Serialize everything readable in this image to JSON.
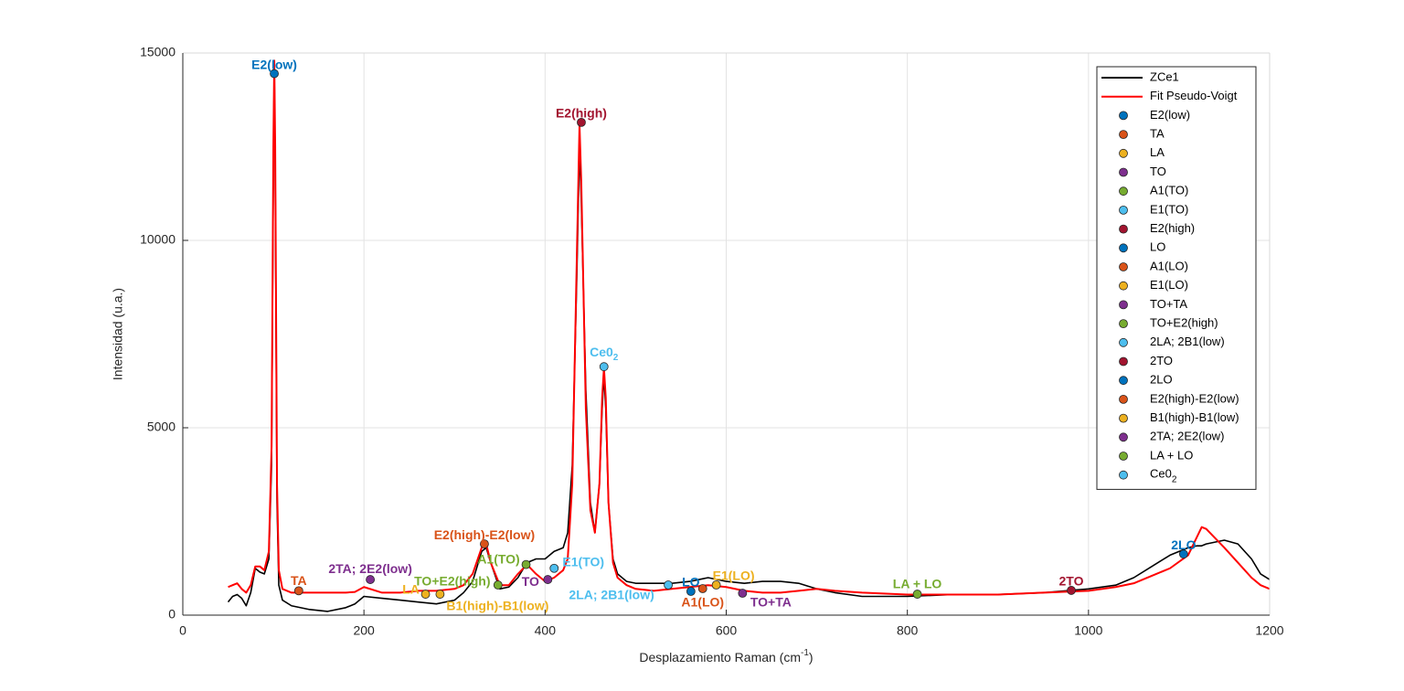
{
  "chart_data": {
    "type": "line",
    "xlabel": [
      "Desplazamiento Raman (cm",
      "-1",
      ")"
    ],
    "ylabel": "Intensidad (u.a.)",
    "xlim": [
      0,
      1200
    ],
    "ylim": [
      0,
      15000
    ],
    "xticks": [
      0,
      200,
      400,
      600,
      800,
      1000,
      1200
    ],
    "yticks": [
      0,
      5000,
      10000,
      15000
    ],
    "grid": true,
    "legend": "northeast",
    "x": [
      50,
      55,
      60,
      65,
      70,
      75,
      80,
      85,
      90,
      95,
      98,
      100,
      101,
      102,
      104,
      106,
      110,
      120,
      140,
      160,
      180,
      190,
      200,
      220,
      240,
      260,
      280,
      300,
      310,
      320,
      330,
      335,
      340,
      350,
      360,
      370,
      380,
      390,
      400,
      410,
      420,
      425,
      430,
      435,
      438,
      440,
      445,
      450,
      455,
      460,
      463,
      465,
      467,
      470,
      475,
      480,
      490,
      500,
      520,
      540,
      560,
      580,
      600,
      620,
      640,
      660,
      680,
      700,
      720,
      750,
      800,
      850,
      900,
      950,
      1000,
      1030,
      1050,
      1070,
      1090,
      1110,
      1120,
      1125,
      1130,
      1150,
      1165,
      1180,
      1190,
      1200
    ],
    "series": [
      {
        "type": "line",
        "name": "ZCe1",
        "color": "#000000",
        "values": [
          350,
          500,
          550,
          450,
          250,
          600,
          1250,
          1150,
          1100,
          1500,
          4000,
          12000,
          14500,
          12000,
          3000,
          800,
          400,
          250,
          150,
          100,
          200,
          300,
          500,
          450,
          400,
          350,
          300,
          400,
          600,
          900,
          1700,
          1800,
          1400,
          700,
          750,
          1000,
          1400,
          1500,
          1500,
          1700,
          1800,
          2200,
          4000,
          9000,
          12500,
          11000,
          6000,
          3000,
          2200,
          3500,
          5500,
          6400,
          5500,
          3000,
          1500,
          1100,
          900,
          850,
          850,
          850,
          900,
          1000,
          900,
          850,
          900,
          900,
          850,
          700,
          600,
          500,
          500,
          550,
          550,
          600,
          700,
          800,
          1000,
          1300,
          1600,
          1800,
          1850,
          1850,
          1900,
          2000,
          1900,
          1500,
          1100,
          950
        ]
      },
      {
        "type": "line",
        "name": "Fit Pseudo-Voigt",
        "color": "#ff0000",
        "values": [
          750,
          800,
          850,
          700,
          600,
          800,
          1300,
          1300,
          1200,
          1700,
          4500,
          12500,
          14800,
          12500,
          3500,
          1200,
          700,
          600,
          600,
          600,
          600,
          620,
          750,
          600,
          600,
          650,
          650,
          700,
          800,
          1100,
          1800,
          1900,
          1400,
          800,
          800,
          1100,
          1350,
          1100,
          900,
          1000,
          1200,
          1500,
          3500,
          9500,
          13100,
          11500,
          5500,
          2800,
          2200,
          3500,
          5800,
          6600,
          5800,
          3000,
          1400,
          1000,
          800,
          700,
          650,
          700,
          750,
          800,
          750,
          650,
          600,
          600,
          650,
          700,
          650,
          600,
          550,
          550,
          550,
          600,
          650,
          750,
          850,
          1050,
          1250,
          1600,
          2100,
          2350,
          2300,
          1800,
          1400,
          1000,
          800,
          700
        ]
      },
      {
        "type": "scatter",
        "name": "E2(low)",
        "color": "#0072BD",
        "x": [
          101
        ],
        "values": [
          14450
        ]
      },
      {
        "type": "scatter",
        "name": "TA",
        "color": "#D95319",
        "x": [
          128
        ],
        "values": [
          650
        ]
      },
      {
        "type": "scatter",
        "name": "LA",
        "color": "#EDB120",
        "x": [
          268
        ],
        "values": [
          560
        ]
      },
      {
        "type": "scatter",
        "name": "TO",
        "color": "#7E2F8E",
        "x": [
          403
        ],
        "values": [
          950
        ]
      },
      {
        "type": "scatter",
        "name": "A1(TO)",
        "color": "#77AC30",
        "x": [
          379
        ],
        "values": [
          1350
        ]
      },
      {
        "type": "scatter",
        "name": "E1(TO)",
        "color": "#4DBEEE",
        "x": [
          410
        ],
        "values": [
          1250
        ]
      },
      {
        "type": "scatter",
        "name": "E2(high)",
        "color": "#A2142F",
        "x": [
          440
        ],
        "values": [
          13150
        ]
      },
      {
        "type": "scatter",
        "name": "LO",
        "color": "#0072BD",
        "x": [
          561
        ],
        "values": [
          634
        ]
      },
      {
        "type": "scatter",
        "name": "A1(LO)",
        "color": "#D95319",
        "x": [
          574
        ],
        "values": [
          707
        ]
      },
      {
        "type": "scatter",
        "name": "E1(LO)",
        "color": "#EDB120",
        "x": [
          589
        ],
        "values": [
          805
        ]
      },
      {
        "type": "scatter",
        "name": "TO+TA",
        "color": "#7E2F8E",
        "x": [
          618
        ],
        "values": [
          585
        ]
      },
      {
        "type": "scatter",
        "name": "TO+E2(high)",
        "color": "#77AC30",
        "x": [
          348
        ],
        "values": [
          805
        ]
      },
      {
        "type": "scatter",
        "name": "2LA; 2B1(low)",
        "color": "#4DBEEE",
        "x": [
          536
        ],
        "values": [
          805
        ]
      },
      {
        "type": "scatter",
        "name": "2TO",
        "color": "#A2142F",
        "x": [
          981
        ],
        "values": [
          660
        ]
      },
      {
        "type": "scatter",
        "name": "2LO",
        "color": "#0072BD",
        "x": [
          1105
        ],
        "values": [
          1630
        ]
      },
      {
        "type": "scatter",
        "name": "E2(high)-E2(low)",
        "color": "#D95319",
        "x": [
          333
        ],
        "values": [
          1900
        ]
      },
      {
        "type": "scatter",
        "name": "B1(high)-B1(low)",
        "color": "#EDB120",
        "x": [
          284
        ],
        "values": [
          560
        ]
      },
      {
        "type": "scatter",
        "name": "2TA; 2E2(low)",
        "color": "#7E2F8E",
        "x": [
          207
        ],
        "values": [
          950
        ]
      },
      {
        "type": "scatter",
        "name": "LA + LO",
        "color": "#77AC30",
        "x": [
          811
        ],
        "values": [
          560
        ]
      },
      {
        "type": "scatter",
        "name": [
          "Ce0",
          "2"
        ],
        "color": "#4DBEEE",
        "x": [
          465
        ],
        "values": [
          6630
        ]
      }
    ]
  }
}
